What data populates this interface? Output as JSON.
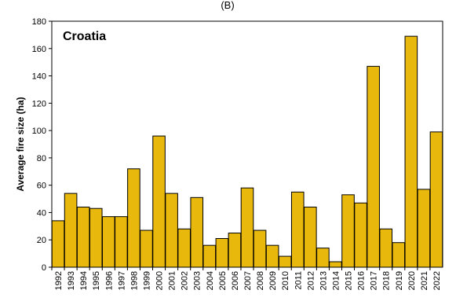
{
  "panel_label": "(B)",
  "chart_data": {
    "type": "bar",
    "title": "Croatia",
    "xlabel": "",
    "ylabel": "Average fire size (ha)",
    "ylim": [
      0,
      180
    ],
    "yticks": [
      0,
      20,
      40,
      60,
      80,
      100,
      120,
      140,
      160,
      180
    ],
    "grid": false,
    "bar_color": "#e8b80c",
    "bar_edge_color": "#000000",
    "categories": [
      "1992",
      "1993",
      "1994",
      "1995",
      "1996",
      "1997",
      "1998",
      "1999",
      "2000",
      "2001",
      "2002",
      "2003",
      "2004",
      "2005",
      "2006",
      "2007",
      "2008",
      "2009",
      "2010",
      "2011",
      "2012",
      "2013",
      "2014",
      "2015",
      "2016",
      "2017",
      "2018",
      "2019",
      "2020",
      "2021",
      "2022"
    ],
    "values": [
      34,
      54,
      44,
      43,
      37,
      37,
      72,
      27,
      96,
      54,
      28,
      51,
      16,
      21,
      25,
      58,
      27,
      16,
      8,
      55,
      44,
      14,
      4,
      53,
      47,
      147,
      28,
      18,
      169,
      57,
      99
    ]
  }
}
